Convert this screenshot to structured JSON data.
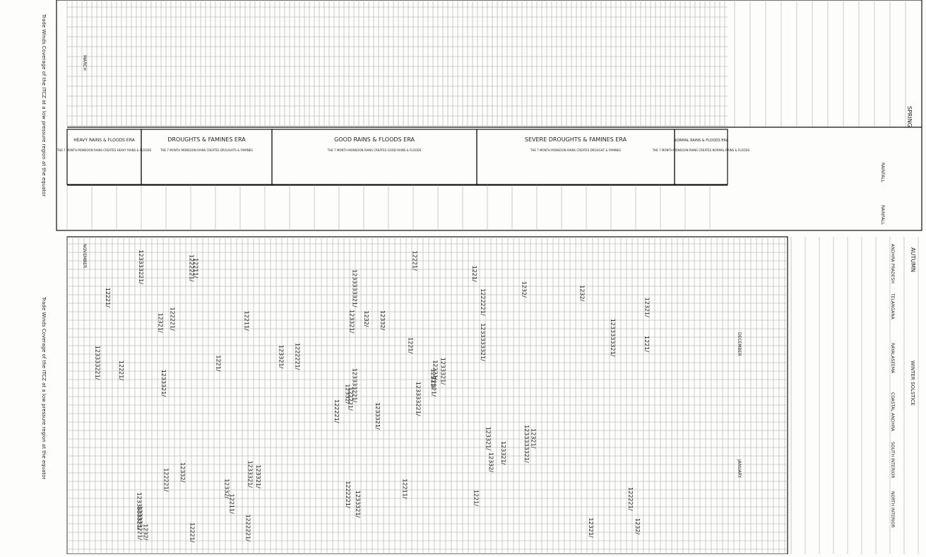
{
  "left_notes": {
    "top": "Trade Winds Coverage of the ITCZ at a low pressure region at the equator",
    "bottom": "Trade Winds Coverage of the ITCZ at a low pressure region at the equator"
  },
  "top_panel": {
    "month": "MARCH",
    "season": "SPRING",
    "eras": [
      {
        "name": "HEAVY RAINS & FLOODS ERA",
        "note": "THE 7 MONTH MONSOON RAINS CREATES HEAVY RAINS & FLOODS"
      },
      {
        "name": "DROUGHTS & FAMINES ERA",
        "note": "THE 7 MONTH MONSOON RAINS CREATES DROUGHTS & FAMINES"
      },
      {
        "name": "GOOD RAINS & FLOODS ERA",
        "note": "THE 7 MONTH MONSOON RAINS CREATES GOOD RAINS & FLOODS"
      },
      {
        "name": "SEVERE DROUGHTS & FAMINES ERA",
        "note": "THE 7 MONTH MONSOON RAINS CREATES DROUGHT & FAMINES"
      },
      {
        "name": "NORMAL RAINS & FLOODS ERA",
        "note": "THE 7 MONTH MONSOON RAINS CREATES NORMAL RAINS & FLOODS"
      }
    ],
    "side_labels": [
      "RAINFALL",
      "RAINFALL"
    ]
  },
  "bottom_panel": {
    "months": [
      "NOVEMBER",
      "DECEMBER",
      "JANUARY"
    ],
    "season": "AUTUMN",
    "solstice": "WINTER SOLSTICE",
    "regions": [
      "ANDHRA PRADESH",
      "TELANGANA",
      "RAYALASEEMA",
      "COASTAL ANDHRA",
      "SOUTH INTERIOR",
      "NORTH INTERIOR"
    ],
    "codes": [
      "1233321/",
      "12321/",
      "122221/",
      "1233333321/",
      "12221/",
      "123321/",
      "1221/",
      "12332/",
      "1222221/",
      "123333221/",
      "12211/",
      "1232/"
    ]
  }
}
